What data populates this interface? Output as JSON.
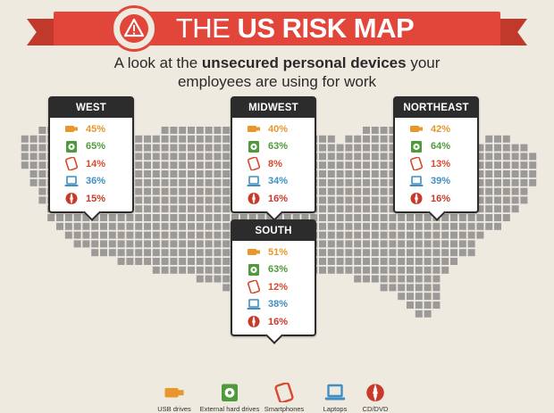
{
  "header": {
    "title_prefix": "THE",
    "title_bold": "US RISK MAP",
    "subtitle_line1_start": "A look at the",
    "subtitle_bold": "unsecured personal devices",
    "subtitle_line1_end": "your",
    "subtitle_line2": "employees are using for work",
    "badge_icon": "warning-triangle-icon"
  },
  "colors": {
    "banner": "#e2463a",
    "usb": "#e9962c",
    "hdd": "#4f9a3a",
    "phone": "#d9492d",
    "laptop": "#3f8fc0",
    "cd": "#c83a2a",
    "map_cells": "#9c9a98",
    "card_header": "#2c2c2c"
  },
  "regions": [
    {
      "name": "WEST",
      "usb": "45%",
      "hdd": "65%",
      "phone": "14%",
      "laptop": "36%",
      "cd": "15%"
    },
    {
      "name": "MIDWEST",
      "usb": "40%",
      "hdd": "63%",
      "phone": "8%",
      "laptop": "34%",
      "cd": "16%"
    },
    {
      "name": "NORTHEAST",
      "usb": "42%",
      "hdd": "64%",
      "phone": "13%",
      "laptop": "39%",
      "cd": "16%"
    },
    {
      "name": "SOUTH",
      "usb": "51%",
      "hdd": "63%",
      "phone": "12%",
      "laptop": "38%",
      "cd": "16%"
    }
  ],
  "legend": [
    {
      "key": "usb",
      "label": "USB drives",
      "icon": "usb-drive-icon"
    },
    {
      "key": "hdd",
      "label": "External hard drives",
      "icon": "external-drive-icon"
    },
    {
      "key": "phone",
      "label": "Smartphones",
      "icon": "smartphone-icon"
    },
    {
      "key": "laptop",
      "label": "Laptops",
      "icon": "laptop-icon"
    },
    {
      "key": "cd",
      "label": "CD/DVD",
      "icon": "cd-dvd-icon"
    }
  ]
}
